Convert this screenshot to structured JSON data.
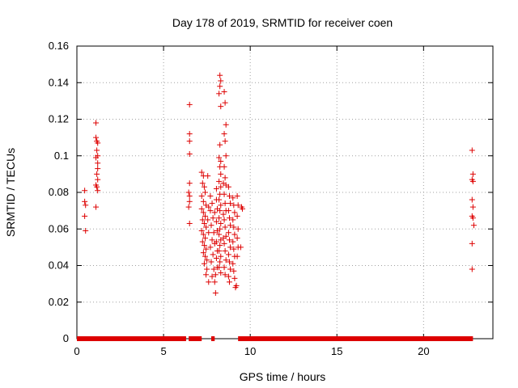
{
  "chart_data": {
    "type": "scatter",
    "title": "Day 178 of 2019, SRMTID for receiver coen",
    "xlabel": "GPS time / hours",
    "ylabel": "SRMTID / TECUs",
    "xlim": [
      0,
      24
    ],
    "ylim": [
      0,
      0.16
    ],
    "xticks": [
      0,
      5,
      10,
      15,
      20
    ],
    "yticks": [
      0,
      0.02,
      0.04,
      0.06,
      0.08,
      0.1,
      0.12,
      0.14,
      0.16
    ],
    "xtick_labels": [
      "0",
      "5",
      "10",
      "15",
      "20"
    ],
    "ytick_labels": [
      "0",
      "0.02",
      "0.04",
      "0.06",
      "0.08",
      "0.1",
      "0.12",
      "0.14",
      "0.16"
    ],
    "grid": true,
    "marker": "+",
    "series": [
      {
        "name": "SRMTID",
        "color": "#dd0000",
        "points": [
          [
            0.45,
            0.081
          ],
          [
            0.45,
            0.075
          ],
          [
            0.5,
            0.073
          ],
          [
            0.45,
            0.067
          ],
          [
            0.5,
            0.059
          ],
          [
            1.1,
            0.118
          ],
          [
            1.1,
            0.11
          ],
          [
            1.15,
            0.108
          ],
          [
            1.2,
            0.107
          ],
          [
            1.15,
            0.103
          ],
          [
            1.2,
            0.1
          ],
          [
            1.1,
            0.099
          ],
          [
            1.2,
            0.096
          ],
          [
            1.2,
            0.093
          ],
          [
            1.15,
            0.09
          ],
          [
            1.2,
            0.087
          ],
          [
            1.1,
            0.084
          ],
          [
            1.15,
            0.083
          ],
          [
            1.2,
            0.081
          ],
          [
            1.1,
            0.072
          ],
          [
            6.5,
            0.128
          ],
          [
            6.5,
            0.112
          ],
          [
            6.5,
            0.108
          ],
          [
            6.5,
            0.101
          ],
          [
            6.5,
            0.085
          ],
          [
            6.45,
            0.08
          ],
          [
            6.5,
            0.078
          ],
          [
            6.5,
            0.075
          ],
          [
            6.45,
            0.072
          ],
          [
            6.5,
            0.063
          ],
          [
            7.2,
            0.091
          ],
          [
            7.3,
            0.089
          ],
          [
            7.25,
            0.085
          ],
          [
            7.35,
            0.083
          ],
          [
            7.4,
            0.08
          ],
          [
            7.2,
            0.078
          ],
          [
            7.3,
            0.075
          ],
          [
            7.45,
            0.073
          ],
          [
            7.2,
            0.071
          ],
          [
            7.3,
            0.069
          ],
          [
            7.4,
            0.067
          ],
          [
            7.25,
            0.065
          ],
          [
            7.35,
            0.063
          ],
          [
            7.45,
            0.061
          ],
          [
            7.2,
            0.059
          ],
          [
            7.3,
            0.057
          ],
          [
            7.4,
            0.055
          ],
          [
            7.25,
            0.053
          ],
          [
            7.35,
            0.051
          ],
          [
            7.45,
            0.049
          ],
          [
            7.3,
            0.047
          ],
          [
            7.4,
            0.045
          ],
          [
            7.5,
            0.043
          ],
          [
            7.35,
            0.041
          ],
          [
            7.5,
            0.038
          ],
          [
            7.45,
            0.035
          ],
          [
            7.6,
            0.031
          ],
          [
            7.55,
            0.089
          ],
          [
            7.6,
            0.072
          ],
          [
            7.55,
            0.065
          ],
          [
            7.6,
            0.058
          ],
          [
            7.7,
            0.078
          ],
          [
            7.8,
            0.074
          ],
          [
            7.7,
            0.07
          ],
          [
            7.85,
            0.066
          ],
          [
            7.75,
            0.062
          ],
          [
            7.9,
            0.058
          ],
          [
            7.8,
            0.054
          ],
          [
            7.7,
            0.05
          ],
          [
            7.85,
            0.046
          ],
          [
            7.75,
            0.042
          ],
          [
            7.9,
            0.038
          ],
          [
            7.8,
            0.034
          ],
          [
            7.95,
            0.031
          ],
          [
            7.95,
            0.069
          ],
          [
            7.95,
            0.052
          ],
          [
            8.05,
            0.082
          ],
          [
            8.05,
            0.076
          ],
          [
            8.1,
            0.071
          ],
          [
            8.05,
            0.064
          ],
          [
            8.1,
            0.059
          ],
          [
            8.05,
            0.053
          ],
          [
            8.1,
            0.048
          ],
          [
            8.05,
            0.044
          ],
          [
            8.1,
            0.039
          ],
          [
            8.0,
            0.035
          ],
          [
            8.0,
            0.025
          ],
          [
            8.25,
            0.144
          ],
          [
            8.3,
            0.141
          ],
          [
            8.25,
            0.138
          ],
          [
            8.2,
            0.134
          ],
          [
            8.3,
            0.127
          ],
          [
            8.25,
            0.106
          ],
          [
            8.2,
            0.099
          ],
          [
            8.3,
            0.097
          ],
          [
            8.25,
            0.094
          ],
          [
            8.3,
            0.09
          ],
          [
            8.2,
            0.086
          ],
          [
            8.3,
            0.083
          ],
          [
            8.25,
            0.079
          ],
          [
            8.2,
            0.076
          ],
          [
            8.3,
            0.073
          ],
          [
            8.25,
            0.07
          ],
          [
            8.2,
            0.066
          ],
          [
            8.3,
            0.063
          ],
          [
            8.25,
            0.06
          ],
          [
            8.2,
            0.057
          ],
          [
            8.3,
            0.054
          ],
          [
            8.25,
            0.051
          ],
          [
            8.2,
            0.048
          ],
          [
            8.3,
            0.045
          ],
          [
            8.25,
            0.042
          ],
          [
            8.2,
            0.039
          ],
          [
            8.3,
            0.036
          ],
          [
            8.5,
            0.135
          ],
          [
            8.55,
            0.129
          ],
          [
            8.6,
            0.117
          ],
          [
            8.5,
            0.112
          ],
          [
            8.55,
            0.108
          ],
          [
            8.6,
            0.1
          ],
          [
            8.5,
            0.094
          ],
          [
            8.55,
            0.088
          ],
          [
            8.6,
            0.084
          ],
          [
            8.5,
            0.079
          ],
          [
            8.55,
            0.074
          ],
          [
            8.6,
            0.07
          ],
          [
            8.5,
            0.065
          ],
          [
            8.55,
            0.061
          ],
          [
            8.6,
            0.056
          ],
          [
            8.5,
            0.052
          ],
          [
            8.55,
            0.048
          ],
          [
            8.6,
            0.043
          ],
          [
            8.5,
            0.039
          ],
          [
            8.55,
            0.035
          ],
          [
            8.45,
            0.085
          ],
          [
            8.45,
            0.068
          ],
          [
            8.45,
            0.055
          ],
          [
            8.75,
            0.083
          ],
          [
            8.8,
            0.078
          ],
          [
            8.85,
            0.074
          ],
          [
            8.75,
            0.07
          ],
          [
            8.8,
            0.066
          ],
          [
            8.85,
            0.062
          ],
          [
            8.75,
            0.058
          ],
          [
            8.8,
            0.054
          ],
          [
            8.85,
            0.05
          ],
          [
            8.75,
            0.046
          ],
          [
            8.8,
            0.042
          ],
          [
            8.85,
            0.038
          ],
          [
            8.75,
            0.034
          ],
          [
            8.8,
            0.031
          ],
          [
            9.0,
            0.077
          ],
          [
            9.05,
            0.073
          ],
          [
            9.1,
            0.069
          ],
          [
            9.0,
            0.065
          ],
          [
            9.05,
            0.061
          ],
          [
            9.1,
            0.057
          ],
          [
            9.0,
            0.053
          ],
          [
            9.05,
            0.049
          ],
          [
            9.1,
            0.045
          ],
          [
            9.0,
            0.041
          ],
          [
            9.05,
            0.037
          ],
          [
            9.1,
            0.033
          ],
          [
            9.2,
            0.029
          ],
          [
            9.15,
            0.028
          ],
          [
            9.25,
            0.078
          ],
          [
            9.3,
            0.073
          ],
          [
            9.25,
            0.067
          ],
          [
            9.3,
            0.06
          ],
          [
            9.25,
            0.055
          ],
          [
            9.3,
            0.05
          ],
          [
            9.25,
            0.045
          ],
          [
            9.5,
            0.072
          ],
          [
            9.55,
            0.071
          ],
          [
            9.45,
            0.05
          ],
          [
            22.8,
            0.103
          ],
          [
            22.85,
            0.09
          ],
          [
            22.8,
            0.087
          ],
          [
            22.85,
            0.086
          ],
          [
            22.8,
            0.076
          ],
          [
            22.85,
            0.072
          ],
          [
            22.8,
            0.067
          ],
          [
            22.85,
            0.066
          ],
          [
            22.9,
            0.062
          ],
          [
            22.8,
            0.052
          ],
          [
            22.8,
            0.038
          ]
        ]
      }
    ],
    "zero_band": [
      [
        0,
        6.3
      ],
      [
        6.45,
        7.2
      ],
      [
        7.75,
        7.95
      ],
      [
        9.3,
        22.85
      ]
    ]
  }
}
